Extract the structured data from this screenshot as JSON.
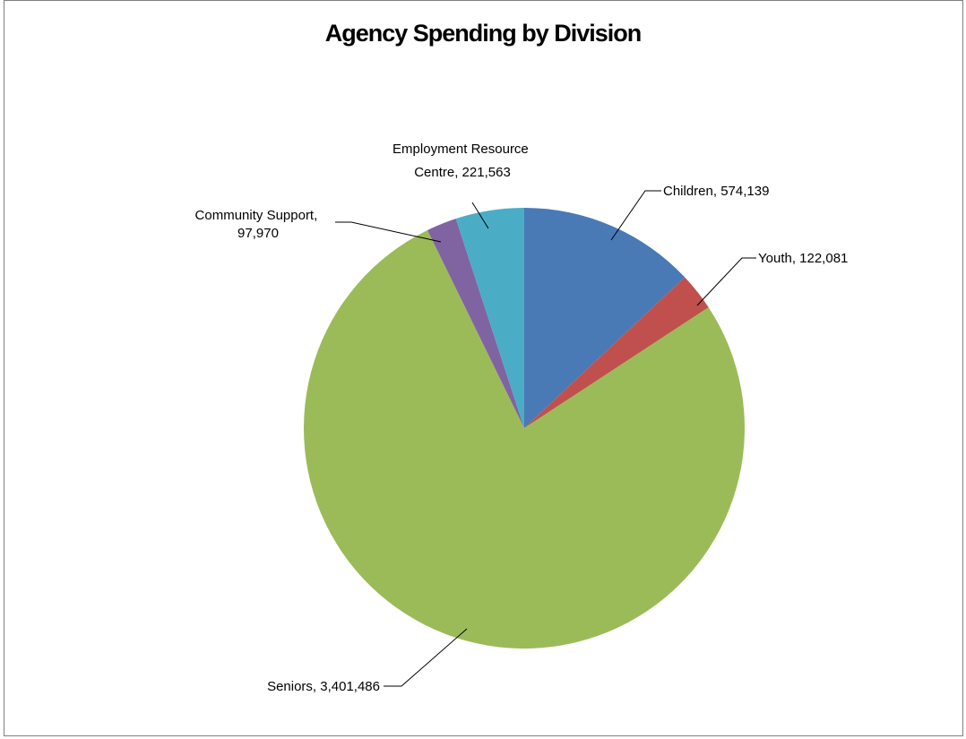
{
  "chart_data": {
    "type": "pie",
    "title": "Agency Spending by Division",
    "slices": [
      {
        "name": "Children",
        "value": 574139,
        "label": "Children, 574,139",
        "color": "#4a7ab5"
      },
      {
        "name": "Youth",
        "value": 122081,
        "label": "Youth, 122,081",
        "color": "#c0504d"
      },
      {
        "name": "Seniors",
        "value": 3401486,
        "label": "Seniors, 3,401,486",
        "color": "#9bbb59"
      },
      {
        "name": "Community Support",
        "value": 97970,
        "label_lines": [
          "Community Support,",
          "97,970"
        ],
        "color": "#8064a2"
      },
      {
        "name": "Employment Resource Centre",
        "value": 221563,
        "label_lines": [
          "Employment Resource",
          "Centre, 221,563"
        ],
        "color": "#4bacc6"
      }
    ],
    "legend": "none",
    "start_angle": "12 o'clock",
    "direction": "clockwise"
  }
}
